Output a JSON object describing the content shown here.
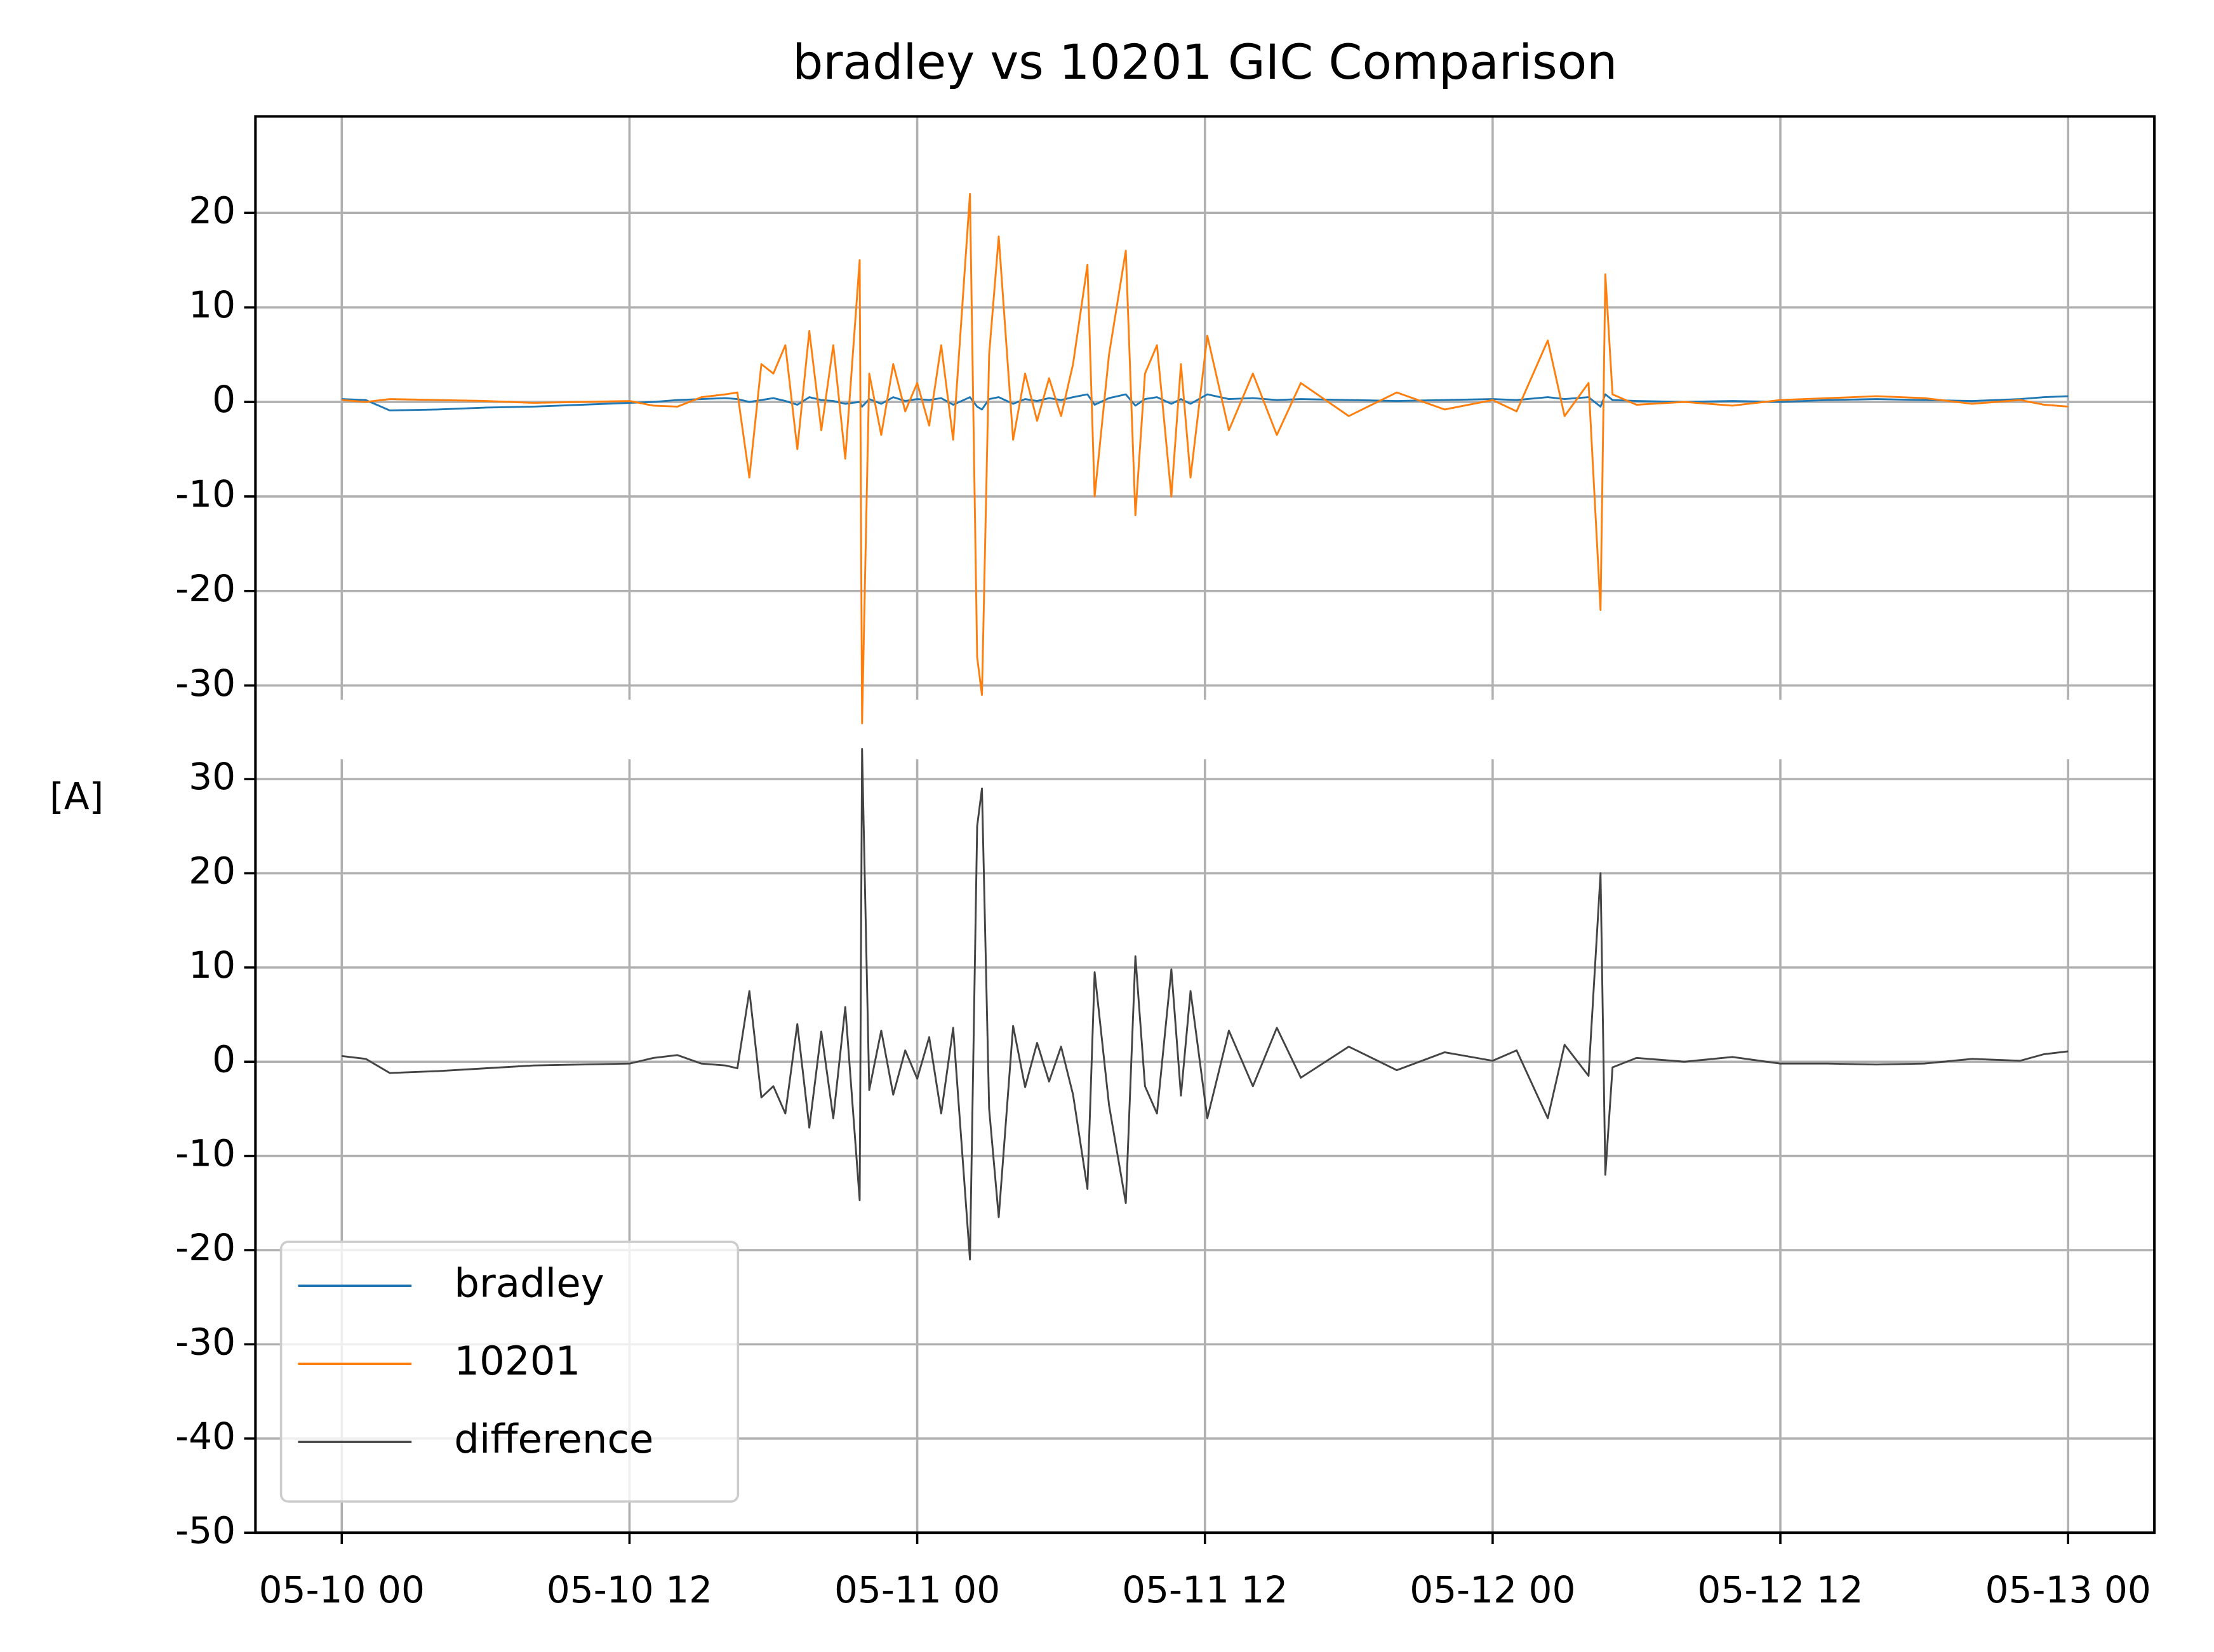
{
  "chart_data": {
    "type": "line",
    "title": "bradley vs 10201 GIC Comparison",
    "y_label": "[A]",
    "grid": true,
    "legend": "lower left",
    "xlim": [
      -3.6,
      75.6
    ],
    "xticks": [
      {
        "value": 0,
        "label": "05-10 00"
      },
      {
        "value": 12,
        "label": "05-10 12"
      },
      {
        "value": 24,
        "label": "05-11 00"
      },
      {
        "value": 36,
        "label": "05-11 12"
      },
      {
        "value": 48,
        "label": "05-12 00"
      },
      {
        "value": 60,
        "label": "05-12 12"
      },
      {
        "value": 72,
        "label": "05-13 00"
      }
    ],
    "x": [
      0,
      1,
      2,
      4,
      6,
      8,
      10,
      12,
      13,
      14,
      15,
      16,
      16.5,
      17,
      17.5,
      18,
      18.5,
      19,
      19.5,
      20,
      20.5,
      21,
      21.6,
      21.7,
      22,
      22.5,
      23,
      23.5,
      24,
      24.5,
      25,
      25.5,
      26.2,
      26.5,
      26.7,
      27,
      27.4,
      28,
      28.5,
      29,
      29.5,
      30,
      30.5,
      31.1,
      31.4,
      32,
      32.7,
      33.1,
      33.5,
      34,
      34.6,
      35,
      35.4,
      36.1,
      37,
      38,
      39,
      40,
      42,
      44,
      46,
      48,
      49,
      50.3,
      51,
      52,
      52.5,
      52.7,
      53,
      54,
      56,
      58,
      60,
      62,
      64,
      66,
      68,
      70,
      71,
      72
    ],
    "panels": [
      {
        "ylim": [
          -31.5,
          30.2
        ],
        "yticks": [
          20,
          10,
          0,
          -10,
          -20,
          -30
        ],
        "series": [
          {
            "name": "bradley",
            "color": "#1f77b4",
            "values": [
              0.3,
              0.2,
              -0.9,
              -0.8,
              -0.6,
              -0.5,
              -0.3,
              -0.1,
              0.0,
              0.2,
              0.3,
              0.4,
              0.3,
              0.0,
              0.2,
              0.4,
              0.1,
              -0.3,
              0.5,
              0.2,
              0.1,
              -0.2,
              0.0,
              -0.5,
              0.3,
              -0.2,
              0.5,
              0.1,
              0.3,
              0.2,
              0.4,
              -0.3,
              0.5,
              -0.5,
              -0.8,
              0.3,
              0.5,
              -0.2,
              0.3,
              0.1,
              0.4,
              0.2,
              0.5,
              0.8,
              -0.3,
              0.4,
              0.8,
              -0.4,
              0.3,
              0.5,
              -0.2,
              0.3,
              -0.2,
              0.8,
              0.3,
              0.4,
              0.2,
              0.3,
              0.2,
              0.1,
              0.2,
              0.3,
              0.2,
              0.5,
              0.3,
              0.5,
              -0.5,
              0.8,
              0.2,
              0.1,
              0.0,
              0.1,
              0.0,
              0.2,
              0.3,
              0.2,
              0.1,
              0.3,
              0.5,
              0.6
            ]
          },
          {
            "name": "10201",
            "color": "#ff7f0e",
            "values": [
              0.2,
              0.0,
              0.3,
              0.2,
              0.1,
              -0.1,
              0.0,
              0.1,
              -0.4,
              -0.5,
              0.5,
              0.8,
              1.0,
              -8.0,
              4.0,
              3.0,
              6.0,
              -5.0,
              7.5,
              -3.0,
              6.0,
              -6.0,
              15.0,
              -34.0,
              3.0,
              -3.5,
              4.0,
              -1.0,
              2.0,
              -2.5,
              6.0,
              -4.0,
              22.0,
              -27.0,
              -31.0,
              5.0,
              17.5,
              -4.0,
              3.0,
              -2.0,
              2.5,
              -1.5,
              4.0,
              14.5,
              -10.0,
              5.0,
              16.0,
              -12.0,
              3.0,
              6.0,
              -10.0,
              4.0,
              -8.0,
              7.0,
              -3.0,
              3.0,
              -3.5,
              2.0,
              -1.5,
              1.0,
              -0.8,
              0.2,
              -1.0,
              6.5,
              -1.5,
              2.0,
              -22.0,
              13.5,
              0.8,
              -0.3,
              0.0,
              -0.4,
              0.2,
              0.4,
              0.6,
              0.4,
              -0.2,
              0.2,
              -0.3,
              -0.5
            ]
          }
        ]
      },
      {
        "ylim": [
          -50,
          32.1
        ],
        "yticks": [
          30,
          20,
          10,
          0,
          -10,
          -20,
          -30,
          -40,
          -50
        ],
        "series": [
          {
            "name": "difference",
            "color": "#444444",
            "values": [
              0.6,
              0.3,
              -1.2,
              -1.0,
              -0.7,
              -0.4,
              -0.3,
              -0.2,
              0.4,
              0.7,
              -0.2,
              -0.4,
              -0.7,
              7.5,
              -3.8,
              -2.6,
              -5.5,
              4.0,
              -7.0,
              3.2,
              -6.0,
              5.8,
              -14.7,
              33.2,
              -3.0,
              3.3,
              -3.5,
              1.2,
              -1.8,
              2.6,
              -5.5,
              3.6,
              -21.0,
              25.0,
              29.0,
              -5.0,
              -16.5,
              3.8,
              -2.7,
              2.0,
              -2.1,
              1.6,
              -3.5,
              -13.5,
              9.5,
              -4.6,
              -15.0,
              11.2,
              -2.6,
              -5.5,
              9.8,
              -3.6,
              7.5,
              -6.0,
              3.3,
              -2.6,
              3.6,
              -1.7,
              1.6,
              -0.9,
              1.0,
              0.1,
              1.2,
              -6.0,
              1.8,
              -1.5,
              20.0,
              -12.0,
              -0.6,
              0.4,
              0.0,
              0.5,
              -0.2,
              -0.2,
              -0.3,
              -0.2,
              0.3,
              0.1,
              0.8,
              1.1
            ]
          }
        ]
      }
    ]
  }
}
